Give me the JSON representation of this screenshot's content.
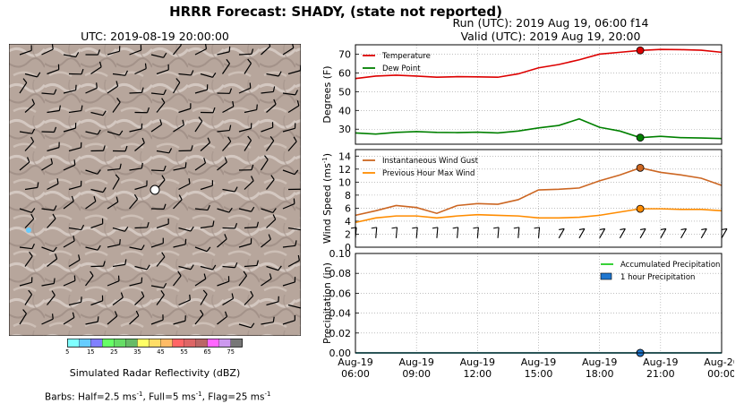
{
  "header": {
    "title": "HRRR Forecast: SHADY, (state not reported)",
    "run_line": "Run (UTC): 2019 Aug 19, 06:00 f14",
    "valid_line": "Valid (UTC): 2019 Aug 19, 20:00"
  },
  "map": {
    "title": "UTC: 2019-08-19 20:00:00",
    "terrain_color": "#b7a69c",
    "station_marker_color": "#ffffff"
  },
  "colorbar": {
    "label": "Simulated Radar Reflectivity (dBZ)",
    "tick_labels": [
      "5",
      "15",
      "25",
      "35",
      "45",
      "55",
      "65",
      "75"
    ],
    "colors": [
      "#80ffff",
      "#66ccff",
      "#8080ff",
      "#66ff66",
      "#66dd66",
      "#66bb66",
      "#ffff66",
      "#ffdd66",
      "#ffbb66",
      "#ff6666",
      "#dd6666",
      "#bb6666",
      "#ff66ff",
      "#cc99ee",
      "#777777"
    ]
  },
  "barbs_note": {
    "prefix": "Barbs: Half=2.5 ms",
    "half_unit_sup": "-1",
    "full": ", Full=5 ms",
    "full_unit_sup": "-1",
    "flag": ", Flag=25 ms",
    "flag_unit_sup": "-1"
  },
  "chart_data": [
    {
      "type": "line",
      "ylabel": "Degrees (F)",
      "ylim": [
        22,
        75
      ],
      "yticks": [
        30,
        40,
        50,
        60,
        70
      ],
      "x_hours": [
        0,
        1,
        2,
        3,
        4,
        5,
        6,
        7,
        8,
        9,
        10,
        11,
        12,
        13,
        14,
        15,
        16,
        17,
        18
      ],
      "series": [
        {
          "name": "Temperature",
          "color": "#dd0000",
          "values": [
            57,
            58.3,
            58.8,
            58.3,
            57.7,
            58,
            57.9,
            57.7,
            59.5,
            62.7,
            64.5,
            67,
            70,
            71,
            72,
            72.5,
            72.4,
            72.1,
            71
          ]
        },
        {
          "name": "Dew Point",
          "color": "#008000",
          "values": [
            28,
            27.4,
            28.3,
            28.7,
            28.3,
            28.2,
            28.4,
            28,
            29,
            30.7,
            32,
            35.5,
            31,
            29,
            25.5,
            26.2,
            25.5,
            25.3,
            25
          ]
        }
      ],
      "highlight_index": 14,
      "legend_loc": "upper left",
      "grid": true
    },
    {
      "type": "line",
      "ylabel": "Wind Speed (ms",
      "ylabel_sup": "-1",
      "ylabel_close": ")",
      "ylim": [
        0,
        15
      ],
      "yticks": [
        0,
        2,
        4,
        6,
        8,
        10,
        12,
        14
      ],
      "x_hours": [
        0,
        1,
        2,
        3,
        4,
        5,
        6,
        7,
        8,
        9,
        10,
        11,
        12,
        13,
        14,
        15,
        16,
        17,
        18
      ],
      "series": [
        {
          "name": "Instantaneous Wind Gust",
          "color": "#cc6622",
          "values": [
            4.9,
            5.6,
            6.4,
            6.1,
            5.2,
            6.4,
            6.7,
            6.6,
            7.3,
            8.8,
            8.9,
            9.1,
            10.2,
            11.1,
            12.2,
            11.5,
            11.1,
            10.6,
            9.5
          ]
        },
        {
          "name": "Previous Hour Max Wind",
          "color": "#ff8c00",
          "values": [
            3.8,
            4.5,
            4.8,
            4.8,
            4.5,
            4.8,
            5,
            4.9,
            4.8,
            4.5,
            4.5,
            4.6,
            4.9,
            5.4,
            5.9,
            5.9,
            5.8,
            5.8,
            5.6
          ]
        }
      ],
      "highlight_index": 14,
      "legend_loc": "upper left",
      "grid": true
    },
    {
      "type": "area",
      "ylabel": "Precipitation (in)",
      "ylim": [
        0,
        0.1
      ],
      "yticks": [
        0,
        0.02,
        0.04,
        0.06,
        0.08,
        0.1
      ],
      "ytick_labels": [
        "0.00",
        "0.02",
        "0.04",
        "0.06",
        "0.08",
        "0.10"
      ],
      "x_hours": [
        0,
        1,
        2,
        3,
        4,
        5,
        6,
        7,
        8,
        9,
        10,
        11,
        12,
        13,
        14,
        15,
        16,
        17,
        18
      ],
      "series": [
        {
          "name": "Accumulated Precipitation",
          "color": "#22cc22",
          "values": [
            0,
            0,
            0,
            0,
            0,
            0,
            0,
            0,
            0,
            0,
            0,
            0,
            0,
            0,
            0,
            0,
            0,
            0,
            0
          ]
        },
        {
          "name": "1 hour Precipitation",
          "color": "#1f77d0",
          "values": [
            0,
            0,
            0,
            0,
            0,
            0,
            0,
            0,
            0,
            0,
            0,
            0,
            0,
            0,
            0,
            0,
            0,
            0,
            0
          ]
        }
      ],
      "highlight_index": 14,
      "legend_loc": "upper right",
      "grid": true,
      "xtick_hours": [
        0,
        3,
        6,
        9,
        12,
        15,
        18
      ],
      "xtick_labels": [
        [
          "Aug-19",
          "06:00"
        ],
        [
          "Aug-19",
          "09:00"
        ],
        [
          "Aug-19",
          "12:00"
        ],
        [
          "Aug-19",
          "15:00"
        ],
        [
          "Aug-19",
          "18:00"
        ],
        [
          "Aug-19",
          "21:00"
        ],
        [
          "Aug-20",
          "00:00"
        ]
      ]
    }
  ]
}
